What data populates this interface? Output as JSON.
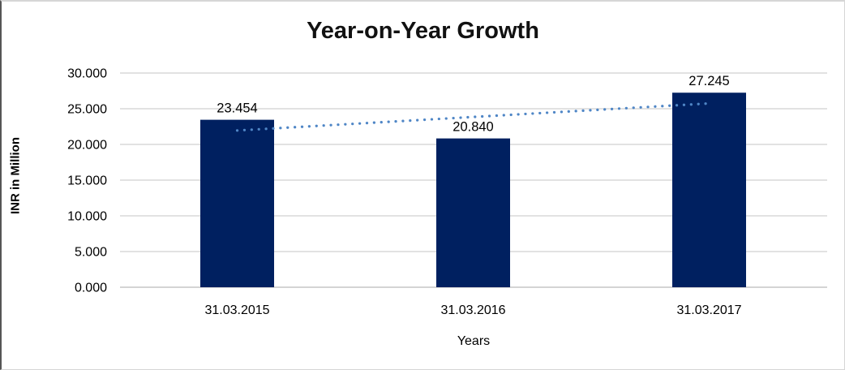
{
  "chart_data": {
    "type": "bar",
    "title": "Year-on-Year Growth",
    "categories": [
      "31.03.2015",
      "31.03.2016",
      "31.03.2017"
    ],
    "values": [
      23.454,
      20.84,
      27.245
    ],
    "data_labels": [
      "23.454",
      "20.840",
      "27.245"
    ],
    "xlabel": "Years",
    "ylabel": "INR in Million",
    "ylim": [
      0,
      30
    ],
    "ytick_step": 5,
    "ytick_labels": [
      "0.000",
      "5.000",
      "10.000",
      "15.000",
      "20.000",
      "25.000",
      "30.000"
    ],
    "grid": true,
    "legend": "none",
    "bar_color": "#002060",
    "gridline_color": "#d9d9d9",
    "axis_line_color": "#c6c6c6",
    "trendline": {
      "type": "linear",
      "style": "dotted",
      "color": "#4f86c6"
    }
  }
}
